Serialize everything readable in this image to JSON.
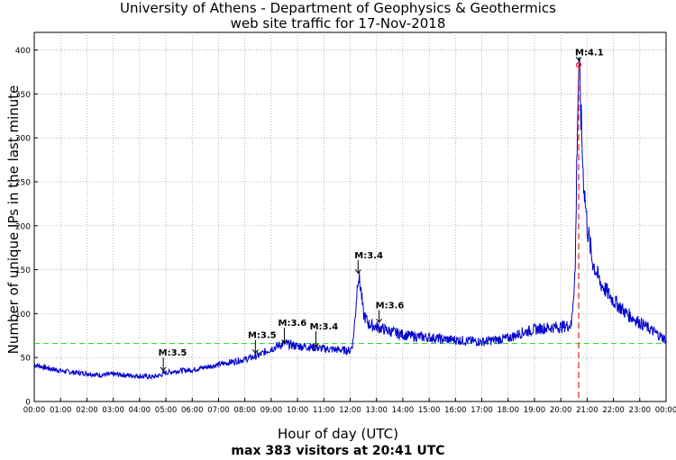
{
  "chart_data": {
    "type": "line",
    "title": "University of Athens - Department of Geophysics & Geothermics",
    "subtitle": "web site traffic for 17-Nov-2018",
    "ylabel": "Number of unique IPs in the last minute",
    "xlabel": "Hour of day (UTC)",
    "xlabel_sub": "max 383 visitors at 20:41 UTC",
    "xlim": [
      0,
      24
    ],
    "ylim": [
      0,
      420
    ],
    "grid": true,
    "x_ticks": [
      "00:00",
      "01:00",
      "02:00",
      "03:00",
      "04:00",
      "05:00",
      "06:00",
      "07:00",
      "08:00",
      "09:00",
      "10:00",
      "11:00",
      "12:00",
      "13:00",
      "14:00",
      "15:00",
      "16:00",
      "17:00",
      "18:00",
      "19:00",
      "20:00",
      "21:00",
      "22:00",
      "23:00",
      "00:00"
    ],
    "y_ticks": [
      0,
      50,
      100,
      150,
      200,
      250,
      300,
      350,
      400
    ],
    "reference_line": {
      "y": 66,
      "color": "#33dd33",
      "style": "dashed"
    },
    "max_marker": {
      "x": 20.68,
      "y": 383,
      "color": "#dd2222"
    },
    "series": [
      {
        "color": "#0000cc",
        "points": [
          [
            0,
            42
          ],
          [
            0.5,
            38
          ],
          [
            1,
            35
          ],
          [
            1.5,
            33
          ],
          [
            2,
            32
          ],
          [
            2.5,
            30
          ],
          [
            3,
            31
          ],
          [
            3.5,
            30
          ],
          [
            4,
            29
          ],
          [
            4.5,
            28
          ],
          [
            4.8,
            30
          ],
          [
            5,
            33
          ],
          [
            5.5,
            35
          ],
          [
            6,
            36
          ],
          [
            6.5,
            39
          ],
          [
            7,
            42
          ],
          [
            7.5,
            45
          ],
          [
            8,
            48
          ],
          [
            8.5,
            52
          ],
          [
            8.8,
            57
          ],
          [
            9,
            60
          ],
          [
            9.3,
            64
          ],
          [
            9.5,
            66
          ],
          [
            10,
            63
          ],
          [
            10.5,
            62
          ],
          [
            11,
            60
          ],
          [
            11.5,
            59
          ],
          [
            12,
            58
          ],
          [
            12.1,
            66
          ],
          [
            12.2,
            100
          ],
          [
            12.3,
            145
          ],
          [
            12.4,
            130
          ],
          [
            12.5,
            100
          ],
          [
            12.7,
            88
          ],
          [
            13,
            85
          ],
          [
            13.5,
            80
          ],
          [
            14,
            76
          ],
          [
            14.5,
            74
          ],
          [
            15,
            73
          ],
          [
            15.5,
            71
          ],
          [
            16,
            70
          ],
          [
            16.5,
            69
          ],
          [
            17,
            68
          ],
          [
            17.5,
            70
          ],
          [
            18,
            72
          ],
          [
            18.5,
            78
          ],
          [
            19,
            82
          ],
          [
            19.5,
            84
          ],
          [
            20,
            85
          ],
          [
            20.4,
            87
          ],
          [
            20.55,
            150
          ],
          [
            20.62,
            300
          ],
          [
            20.68,
            383
          ],
          [
            20.75,
            340
          ],
          [
            20.85,
            260
          ],
          [
            21,
            200
          ],
          [
            21.2,
            160
          ],
          [
            21.5,
            135
          ],
          [
            22,
            115
          ],
          [
            22.5,
            100
          ],
          [
            23,
            90
          ],
          [
            23.5,
            80
          ],
          [
            24,
            70
          ]
        ]
      }
    ],
    "annotations": [
      {
        "label": "M:3.5",
        "x": 4.85,
        "y": 52,
        "arrow_x": 4.9,
        "arrow_y": 35
      },
      {
        "label": "M:3.5",
        "x": 8.25,
        "y": 72,
        "arrow_x": 8.4,
        "arrow_y": 55
      },
      {
        "label": "M:3.6",
        "x": 9.4,
        "y": 86,
        "arrow_x": 9.5,
        "arrow_y": 66
      },
      {
        "label": "M:3.4",
        "x": 10.6,
        "y": 82,
        "arrow_x": 10.7,
        "arrow_y": 62
      },
      {
        "label": "M:3.4",
        "x": 12.3,
        "y": 163,
        "arrow_x": 12.3,
        "arrow_y": 146
      },
      {
        "label": "M:3.6",
        "x": 13.1,
        "y": 106,
        "arrow_x": 13.1,
        "arrow_y": 90
      },
      {
        "label": "M:4.1",
        "x": 20.68,
        "y": 394,
        "arrow_x": 20.68,
        "arrow_y": 388
      }
    ]
  }
}
